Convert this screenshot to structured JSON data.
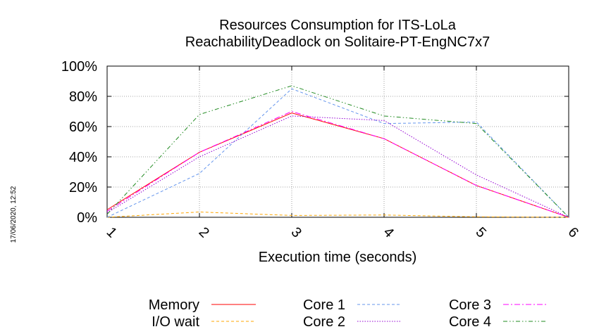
{
  "timestamp": "17/06/2020, 12:52",
  "chart_data": {
    "type": "line",
    "title": "Resources Consumption for ITS-LoLa",
    "subtitle": "ReachabilityDeadlock on Solitaire-PT-EngNC7x7",
    "xlabel": "Execution time (seconds)",
    "ylabel": "",
    "x": [
      1,
      2,
      3,
      4,
      5,
      6
    ],
    "xlim": [
      1,
      6
    ],
    "ylim": [
      0,
      100
    ],
    "y_ticks": [
      "0%",
      "20%",
      "40%",
      "60%",
      "80%",
      "100%"
    ],
    "grid": true,
    "legend_position": "bottom",
    "series": [
      {
        "name": "Memory",
        "color": "#ff0000",
        "dash": "solid",
        "values": [
          5,
          43,
          69,
          52,
          21,
          0
        ]
      },
      {
        "name": "I/O wait",
        "color": "#ffa500",
        "dash": "dashed",
        "values": [
          0,
          3.5,
          1.2,
          1.5,
          0.3,
          0
        ]
      },
      {
        "name": "Core 1",
        "color": "#6495ed",
        "dash": "dashed",
        "values": [
          0,
          29,
          85,
          62,
          63,
          0
        ]
      },
      {
        "name": "Core 2",
        "color": "#9400d3",
        "dash": "dotted",
        "values": [
          3,
          40,
          67,
          64,
          28,
          0
        ]
      },
      {
        "name": "Core 3",
        "color": "#ff00ff",
        "dash": "dashdot",
        "values": [
          4,
          43,
          70,
          52,
          21,
          0
        ]
      },
      {
        "name": "Core 4",
        "color": "#228b22",
        "dash": "dashdotdot",
        "values": [
          2,
          68,
          87,
          67,
          62,
          0
        ]
      }
    ]
  }
}
